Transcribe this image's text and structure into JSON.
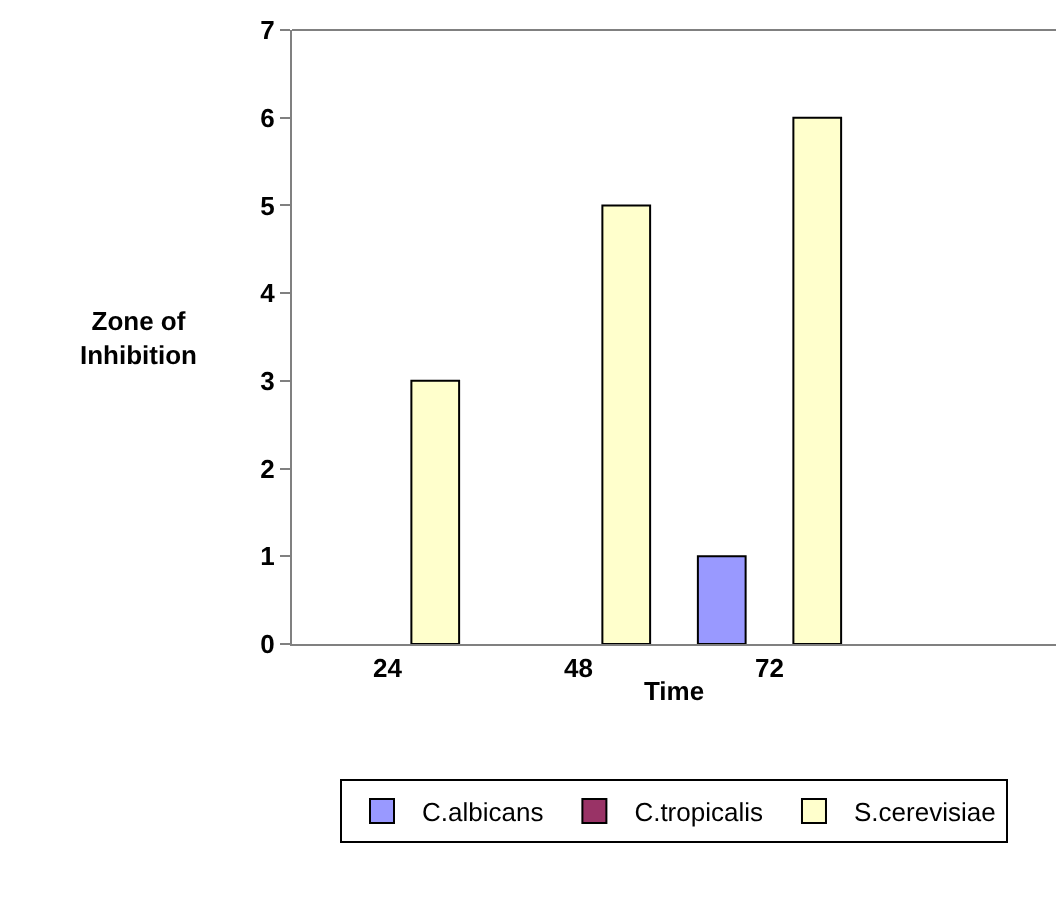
{
  "chart_data": {
    "type": "bar",
    "xlabel": "Time",
    "ylabel": "Zone of Inhibition",
    "categories": [
      "24",
      "48",
      "72",
      null
    ],
    "series": [
      {
        "name": "C.albicans",
        "color": "#9999ff",
        "values": [
          null,
          null,
          1,
          null
        ]
      },
      {
        "name": "C.tropicalis",
        "color": "#993366",
        "values": [
          null,
          null,
          null,
          null
        ]
      },
      {
        "name": "S.cerevisiae",
        "color": "#ffffcc",
        "values": [
          3,
          5,
          6,
          null
        ]
      }
    ],
    "ylim": [
      0,
      7
    ],
    "yticks": [
      0,
      1,
      2,
      3,
      4,
      5,
      6,
      7
    ],
    "legend": "bottom"
  }
}
